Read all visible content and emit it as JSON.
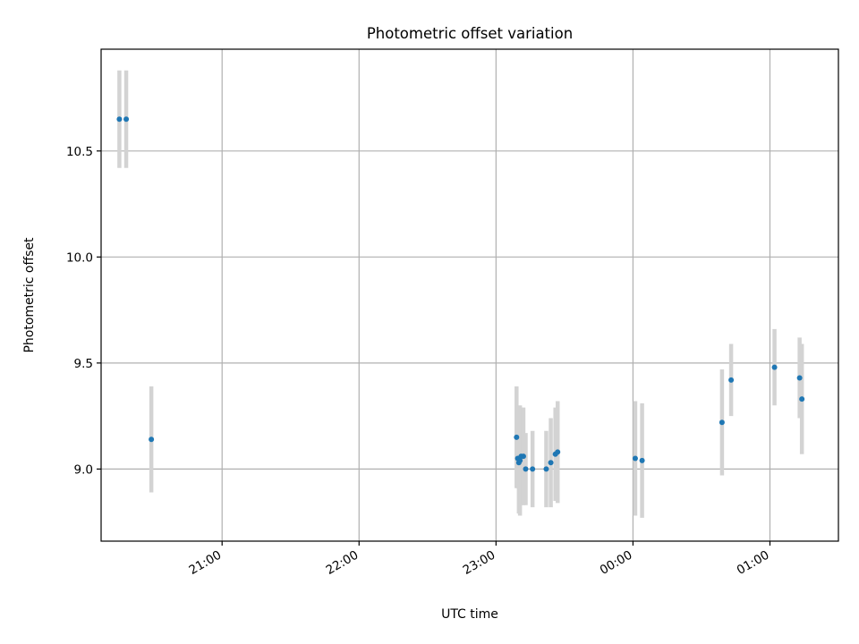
{
  "chart_data": {
    "type": "scatter",
    "title": "Photometric offset variation",
    "xlabel": "UTC time",
    "ylabel": "Photometric offset",
    "grid": true,
    "xlim": [
      "20:07",
      "01:30"
    ],
    "ylim": [
      8.66,
      10.98
    ],
    "x_ticks": [
      "21:00",
      "22:00",
      "23:00",
      "00:00",
      "01:00"
    ],
    "y_ticks": [
      "9.0",
      "9.5",
      "10.0",
      "10.5"
    ],
    "colors": {
      "point": "#1f77b4",
      "errorbar": "#d3d3d3",
      "grid": "#b0b0b0"
    },
    "series": [
      {
        "x": [
          "20:15",
          "20:18",
          "20:29",
          "23:09",
          "23:09.5",
          "23:10",
          "23:10.5",
          "23:11",
          "23:12",
          "23:13",
          "23:16",
          "23:22",
          "23:24",
          "23:26",
          "23:27",
          "00:01",
          "00:04",
          "00:39",
          "00:43",
          "01:02",
          "01:13",
          "01:14"
        ],
        "y": [
          10.65,
          10.65,
          9.14,
          9.15,
          9.05,
          9.03,
          9.04,
          9.06,
          9.06,
          9.0,
          9.0,
          9.0,
          9.03,
          9.07,
          9.08,
          9.05,
          9.04,
          9.22,
          9.42,
          9.48,
          9.43,
          9.33
        ],
        "yerr": [
          0.23,
          0.23,
          0.25,
          0.24,
          0.14,
          0.24,
          0.26,
          0.23,
          0.23,
          0.17,
          0.18,
          0.18,
          0.21,
          0.22,
          0.24,
          0.27,
          0.27,
          0.25,
          0.17,
          0.18,
          0.19,
          0.26
        ]
      }
    ]
  }
}
